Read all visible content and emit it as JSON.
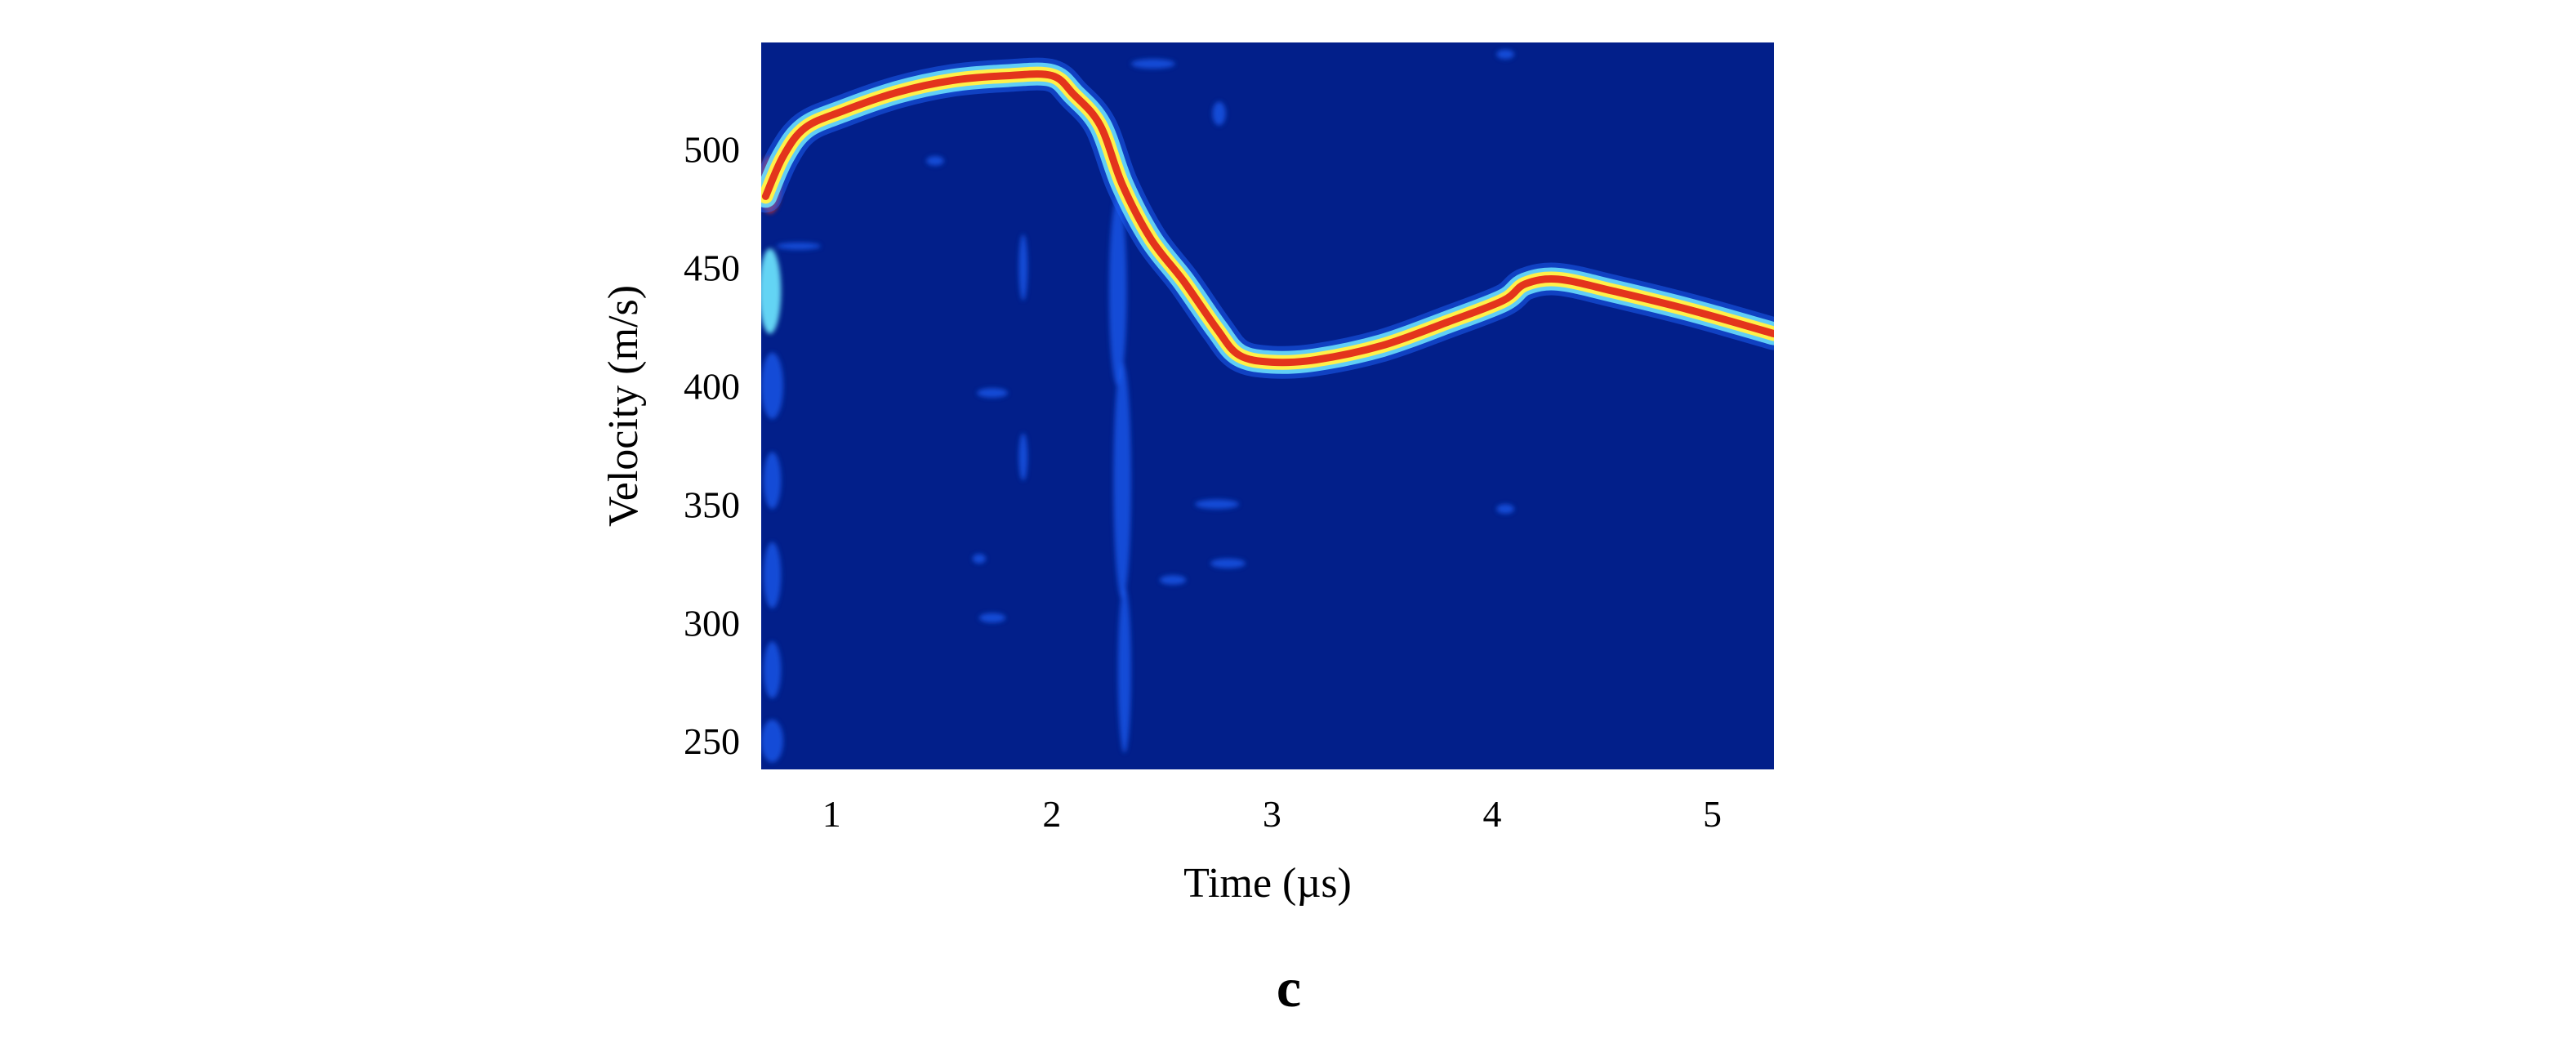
{
  "chart_data": {
    "type": "heatmap",
    "title": "",
    "xlabel": "Time (µs)",
    "ylabel": "Velocity (m/s)",
    "xlim": [
      0.68,
      5.28
    ],
    "ylim": [
      238,
      545
    ],
    "x_ticks": [
      {
        "value": 1,
        "label": "1"
      },
      {
        "value": 2,
        "label": "2"
      },
      {
        "value": 3,
        "label": "3"
      },
      {
        "value": 4,
        "label": "4"
      },
      {
        "value": 5,
        "label": "5"
      }
    ],
    "y_ticks": [
      {
        "value": 250,
        "label": "250"
      },
      {
        "value": 300,
        "label": "300"
      },
      {
        "value": 350,
        "label": "350"
      },
      {
        "value": 400,
        "label": "400"
      },
      {
        "value": 450,
        "label": "450"
      },
      {
        "value": 500,
        "label": "500"
      }
    ],
    "grid": false,
    "colorscale": [
      "#021f8a",
      "#1e5cf0",
      "#6fe8ff",
      "#fff14a",
      "#e3341c"
    ],
    "background_color": "#021f8a",
    "ridge": [
      {
        "x": 0.7,
        "y": 480
      },
      {
        "x": 0.78,
        "y": 497
      },
      {
        "x": 0.88,
        "y": 509
      },
      {
        "x": 1.05,
        "y": 516
      },
      {
        "x": 1.3,
        "y": 524
      },
      {
        "x": 1.55,
        "y": 529
      },
      {
        "x": 1.8,
        "y": 531
      },
      {
        "x": 2.0,
        "y": 531
      },
      {
        "x": 2.1,
        "y": 523
      },
      {
        "x": 2.22,
        "y": 510
      },
      {
        "x": 2.32,
        "y": 485
      },
      {
        "x": 2.45,
        "y": 462
      },
      {
        "x": 2.6,
        "y": 444
      },
      {
        "x": 2.75,
        "y": 424
      },
      {
        "x": 2.85,
        "y": 413
      },
      {
        "x": 3.0,
        "y": 410
      },
      {
        "x": 3.2,
        "y": 411
      },
      {
        "x": 3.5,
        "y": 417
      },
      {
        "x": 3.8,
        "y": 427
      },
      {
        "x": 4.05,
        "y": 436
      },
      {
        "x": 4.15,
        "y": 443
      },
      {
        "x": 4.3,
        "y": 445
      },
      {
        "x": 4.55,
        "y": 440
      },
      {
        "x": 4.9,
        "y": 432
      },
      {
        "x": 5.28,
        "y": 422
      }
    ],
    "speckles": [
      {
        "x": 0.72,
        "y": 485,
        "rx": 0.05,
        "ry": 12,
        "level": 4
      },
      {
        "x": 0.72,
        "y": 440,
        "rx": 0.05,
        "ry": 18,
        "level": 2
      },
      {
        "x": 0.73,
        "y": 400,
        "rx": 0.05,
        "ry": 14,
        "level": 1
      },
      {
        "x": 0.73,
        "y": 360,
        "rx": 0.04,
        "ry": 12,
        "level": 1
      },
      {
        "x": 0.73,
        "y": 320,
        "rx": 0.04,
        "ry": 14,
        "level": 1
      },
      {
        "x": 0.73,
        "y": 280,
        "rx": 0.04,
        "ry": 12,
        "level": 1
      },
      {
        "x": 0.73,
        "y": 250,
        "rx": 0.05,
        "ry": 9,
        "level": 1
      },
      {
        "x": 0.85,
        "y": 459,
        "rx": 0.1,
        "ry": 1.5,
        "level": 1
      },
      {
        "x": 1.5,
        "y": 526,
        "rx": 0.1,
        "ry": 2,
        "level": 1
      },
      {
        "x": 1.47,
        "y": 495,
        "rx": 0.04,
        "ry": 2,
        "level": 1
      },
      {
        "x": 1.73,
        "y": 397,
        "rx": 0.07,
        "ry": 2,
        "level": 1
      },
      {
        "x": 1.73,
        "y": 302,
        "rx": 0.06,
        "ry": 2,
        "level": 1
      },
      {
        "x": 1.67,
        "y": 327,
        "rx": 0.03,
        "ry": 2,
        "level": 1
      },
      {
        "x": 1.87,
        "y": 450,
        "rx": 0.02,
        "ry": 14,
        "level": 1
      },
      {
        "x": 1.87,
        "y": 370,
        "rx": 0.02,
        "ry": 10,
        "level": 1
      },
      {
        "x": 2.3,
        "y": 440,
        "rx": 0.04,
        "ry": 40,
        "level": 1
      },
      {
        "x": 2.32,
        "y": 360,
        "rx": 0.04,
        "ry": 50,
        "level": 1
      },
      {
        "x": 2.33,
        "y": 280,
        "rx": 0.03,
        "ry": 35,
        "level": 1
      },
      {
        "x": 2.46,
        "y": 536,
        "rx": 0.1,
        "ry": 2,
        "level": 1
      },
      {
        "x": 2.55,
        "y": 318,
        "rx": 0.06,
        "ry": 2,
        "level": 1
      },
      {
        "x": 2.75,
        "y": 350,
        "rx": 0.1,
        "ry": 2,
        "level": 1
      },
      {
        "x": 2.8,
        "y": 325,
        "rx": 0.08,
        "ry": 2,
        "level": 1
      },
      {
        "x": 2.76,
        "y": 515,
        "rx": 0.03,
        "ry": 5,
        "level": 1
      },
      {
        "x": 4.06,
        "y": 348,
        "rx": 0.04,
        "ry": 2,
        "level": 1
      },
      {
        "x": 4.06,
        "y": 540,
        "rx": 0.04,
        "ry": 2,
        "level": 1
      }
    ],
    "panel_label": "c"
  }
}
